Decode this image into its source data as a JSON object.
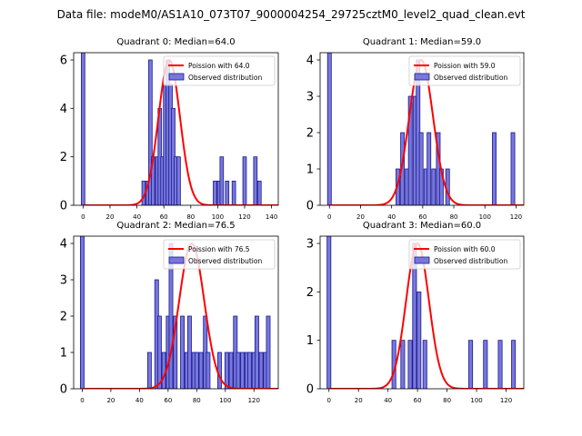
{
  "figure": {
    "suptitle": "Data file: modeM0/AS1A10_073T07_9000004254_29725cztM0_level2_quad_clean.evt"
  },
  "style": {
    "bar_fill": "#7777dd",
    "bar_edge": "#1a1a8c",
    "curve": "#ff0000",
    "axis": "#000000"
  },
  "chart_data": [
    {
      "type": "bar",
      "title": "Quadrant 0: Median=64.0",
      "xlim": [
        -7,
        145
      ],
      "ylim": [
        0,
        6.3
      ],
      "xticks": [
        0,
        20,
        40,
        60,
        80,
        100,
        120,
        140
      ],
      "yticks": [
        0,
        2,
        4,
        6
      ],
      "bin_width": 2.6,
      "bins": [
        [
          0,
          6.3
        ],
        [
          45,
          1
        ],
        [
          48,
          1
        ],
        [
          50,
          6
        ],
        [
          52,
          2
        ],
        [
          55,
          2
        ],
        [
          57,
          4
        ],
        [
          59,
          2
        ],
        [
          61,
          5
        ],
        [
          63,
          6
        ],
        [
          65,
          5
        ],
        [
          67,
          4
        ],
        [
          69,
          2
        ],
        [
          71,
          2
        ],
        [
          98,
          1
        ],
        [
          101,
          1
        ],
        [
          103,
          2
        ],
        [
          107,
          1
        ],
        [
          112,
          1
        ],
        [
          120,
          2
        ],
        [
          128,
          2
        ],
        [
          131,
          1
        ]
      ],
      "curve": {
        "lambda": 64.0,
        "peak": 6.0
      },
      "legend": {
        "curve_label": "Poission with 64.0",
        "bars_label": "Observed distribution",
        "position": "top-right"
      }
    },
    {
      "type": "bar",
      "title": "Quadrant 1: Median=59.0",
      "xlim": [
        -6,
        125
      ],
      "ylim": [
        0,
        4.2
      ],
      "xticks": [
        0,
        20,
        40,
        60,
        80,
        100,
        120
      ],
      "yticks": [
        0,
        1,
        2,
        3,
        4
      ],
      "bin_width": 2.4,
      "bins": [
        [
          0,
          4.2
        ],
        [
          44,
          1
        ],
        [
          47,
          2
        ],
        [
          50,
          1
        ],
        [
          52,
          3
        ],
        [
          55,
          3
        ],
        [
          57,
          4
        ],
        [
          59,
          2
        ],
        [
          62,
          1
        ],
        [
          64,
          2
        ],
        [
          67,
          1
        ],
        [
          70,
          2
        ],
        [
          72,
          1
        ],
        [
          76,
          1
        ],
        [
          106,
          2
        ],
        [
          118,
          2
        ]
      ],
      "curve": {
        "lambda": 59.0,
        "peak": 4.0
      },
      "legend": {
        "curve_label": "Poission with 59.0",
        "bars_label": "Observed distribution",
        "position": "top-right"
      }
    },
    {
      "type": "bar",
      "title": "Quadrant 2: Median=76.5",
      "xlim": [
        -6,
        137
      ],
      "ylim": [
        0,
        4.2
      ],
      "xticks": [
        0,
        20,
        40,
        60,
        80,
        100,
        120
      ],
      "yticks": [
        0,
        1,
        2,
        3,
        4
      ],
      "bin_width": 2.6,
      "bins": [
        [
          0,
          4.2
        ],
        [
          47,
          1
        ],
        [
          52,
          3
        ],
        [
          54,
          2
        ],
        [
          57,
          1
        ],
        [
          60,
          2
        ],
        [
          62,
          4
        ],
        [
          65,
          2
        ],
        [
          70,
          2
        ],
        [
          73,
          1
        ],
        [
          75,
          2
        ],
        [
          78,
          1
        ],
        [
          80,
          1
        ],
        [
          83,
          1
        ],
        [
          86,
          2
        ],
        [
          88,
          1
        ],
        [
          96,
          1
        ],
        [
          101,
          1
        ],
        [
          104,
          1
        ],
        [
          107,
          2
        ],
        [
          109,
          1
        ],
        [
          112,
          1
        ],
        [
          115,
          1
        ],
        [
          117,
          1
        ],
        [
          120,
          1
        ],
        [
          122,
          2
        ],
        [
          125,
          1
        ],
        [
          128,
          1
        ],
        [
          130,
          2
        ]
      ],
      "curve": {
        "lambda": 76.5,
        "peak": 4.0
      },
      "legend": {
        "curve_label": "Poission with 76.5",
        "bars_label": "Observed distribution",
        "position": "top-right"
      }
    },
    {
      "type": "bar",
      "title": "Quadrant 3: Median=60.0",
      "xlim": [
        -6,
        132
      ],
      "ylim": [
        0,
        3.15
      ],
      "xticks": [
        0,
        20,
        40,
        60,
        80,
        100,
        120
      ],
      "yticks": [
        0,
        1,
        2,
        3
      ],
      "bin_width": 2.6,
      "bins": [
        [
          0,
          3.15
        ],
        [
          44,
          1
        ],
        [
          50,
          1
        ],
        [
          55,
          1
        ],
        [
          58,
          3
        ],
        [
          61,
          2
        ],
        [
          65,
          1
        ],
        [
          96,
          1
        ],
        [
          106,
          1
        ],
        [
          116,
          1
        ],
        [
          125,
          1
        ]
      ],
      "curve": {
        "lambda": 60.0,
        "peak": 3.0
      },
      "legend": {
        "curve_label": "Poission with 60.0",
        "bars_label": "Observed distribution",
        "position": "top-right"
      }
    }
  ]
}
